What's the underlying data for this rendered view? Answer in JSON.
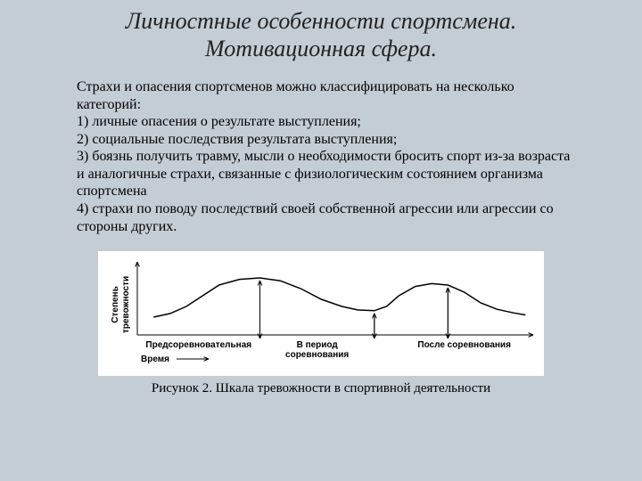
{
  "title": "Личностные особенности спортсмена. Мотивационная сфера.",
  "paragraph_intro": "Страхи и опасения спортсменов можно классифицировать на несколько категорий:",
  "items": [
    "1) личные опасения о результате выступления;",
    "2) социальные последствия результата выступления;",
    "3) боязнь получить травму, мысли о необходимости бросить спорт из-за возраста и аналогичные страхи, связанные с физиологическим состоянием организма спортсмена",
    "4) страхи по поводу последствий своей собственной агрессии или агрессии со стороны других."
  ],
  "chart": {
    "type": "line",
    "background_color": "#ffffff",
    "line_color": "#000000",
    "axis_color": "#000000",
    "line_width": 1.5,
    "y_axis_label_line1": "Степень",
    "y_axis_label_line2": "тревожности",
    "x_axis_label": "Время",
    "phase_labels": [
      "Предсоревновательная",
      "В период соревнования",
      "После соревнования"
    ],
    "label_fontsize": 10,
    "label_font": "Arial, sans-serif",
    "divider_x": [
      150,
      290,
      380
    ],
    "curve_points": [
      [
        20,
        75
      ],
      [
        40,
        70
      ],
      [
        60,
        60
      ],
      [
        80,
        45
      ],
      [
        100,
        30
      ],
      [
        125,
        22
      ],
      [
        150,
        20
      ],
      [
        175,
        24
      ],
      [
        200,
        35
      ],
      [
        225,
        50
      ],
      [
        250,
        60
      ],
      [
        270,
        65
      ],
      [
        290,
        66
      ],
      [
        305,
        60
      ],
      [
        320,
        45
      ],
      [
        340,
        32
      ],
      [
        360,
        28
      ],
      [
        380,
        30
      ],
      [
        400,
        40
      ],
      [
        420,
        55
      ],
      [
        440,
        64
      ],
      [
        460,
        69
      ],
      [
        475,
        72
      ]
    ],
    "xlim": [
      0,
      480
    ],
    "ylim": [
      0,
      100
    ]
  },
  "caption": "Рисунок 2. Шкала тревожности в спортивной деятельности"
}
